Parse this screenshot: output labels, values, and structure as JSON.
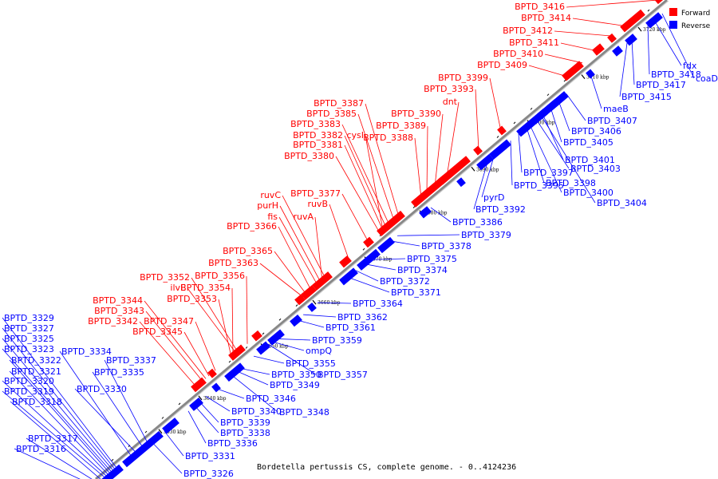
{
  "caption": "Bordetella pertussis CS, complete genome. - 0..4124236",
  "legend": {
    "forward": "Forward",
    "reverse": "Reverse"
  },
  "colors": {
    "forward": "#ff0000",
    "reverse": "#0000ff",
    "backbone": "#888888"
  },
  "ticks": [
    "3630 kbp",
    "3640 kbp",
    "3650 kbp",
    "3660 kbp",
    "3670 kbp",
    "3680 kbp",
    "3690 kbp",
    "3700 kbp",
    "3710 kbp",
    "3720 kbp"
  ],
  "forward_labels": [
    "BPTD_3416",
    "BPTD_3414",
    "BPTD_3412",
    "BPTD_3411",
    "BPTD_3410",
    "BPTD_3409",
    "BPTD_3399",
    "BPTD_3393",
    "dnt",
    "BPTD_3390",
    "BPTD_3389",
    "BPTD_3388",
    "BPTD_3387",
    "BPTD_3385",
    "BPTD_3383",
    "BPTD_3382",
    "cysI",
    "BPTD_3381",
    "BPTD_3380",
    "BPTD_3377",
    "ruvB",
    "ruvC",
    "purH",
    "fis",
    "ruvA",
    "BPTD_3366",
    "BPTD_3365",
    "BPTD_3363",
    "BPTD_3356",
    "BPTD_3352",
    "ilvE",
    "BPTD_3354",
    "BPTD_3353",
    "BPTD_3344",
    "BPTD_3343",
    "BPTD_3342",
    "BPTD_3347",
    "BPTD_3345"
  ],
  "reverse_labels": [
    "fdx",
    "BPTD_3418",
    "coaD",
    "BPTD_3417",
    "BPTD_3415",
    "maeB",
    "BPTD_3407",
    "BPTD_3406",
    "BPTD_3405",
    "BPTD_3401",
    "BPTD_3403",
    "BPTD_3397",
    "BPTD_3395",
    "BPTD_3398",
    "BPTD_3400",
    "BPTD_3404",
    "pyrD",
    "BPTD_3392",
    "BPTD_3386",
    "BPTD_3379",
    "BPTD_3378",
    "BPTD_3375",
    "BPTD_3374",
    "BPTD_3372",
    "BPTD_3371",
    "BPTD_3364",
    "BPTD_3362",
    "BPTD_3361",
    "BPTD_3359",
    "ompQ",
    "BPTD_3355",
    "BPTD_3350",
    "BPTD_3357",
    "BPTD_3349",
    "BPTD_3346",
    "BPTD_3340",
    "BPTD_3348",
    "BPTD_3339",
    "BPTD_3338",
    "BPTD_3336",
    "BPTD_3331",
    "BPTD_3326",
    "BPTD_3329",
    "BPTD_3327",
    "BPTD_3325",
    "BPTD_3323",
    "BPTD_3334",
    "BPTD_3322",
    "BPTD_3321",
    "BPTD_3320",
    "BPTD_3319",
    "BPTD_3318",
    "BPTD_3337",
    "BPTD_3335",
    "BPTD_3330",
    "BPTD_3317",
    "BPTD_3316"
  ]
}
